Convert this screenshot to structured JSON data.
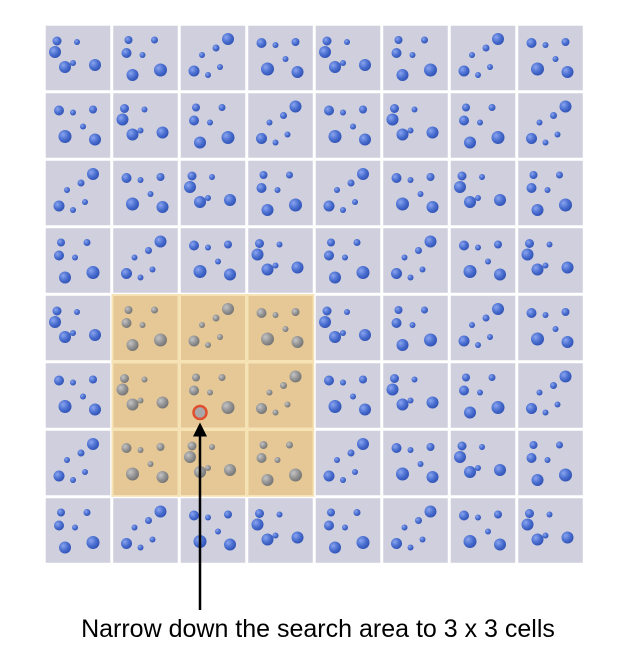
{
  "grid": {
    "rows": 8,
    "cols": 8,
    "highlight": {
      "row_start": 4,
      "row_end": 6,
      "col_start": 1,
      "col_end": 3
    },
    "query_cell": {
      "row": 5,
      "col": 2
    }
  },
  "colors": {
    "cell_fill": "#cfcfdd",
    "cell_border": "#ffffff",
    "highlight_fill": "#e6c896",
    "highlight_border": "#f5e2b5",
    "dot_blue": "#4a6fd0",
    "dot_gray": "#8f8f8f",
    "query_stroke": "#e0502f",
    "arrow": "#000000"
  },
  "caption": "Narrow down the search area to 3 x 3 cells"
}
